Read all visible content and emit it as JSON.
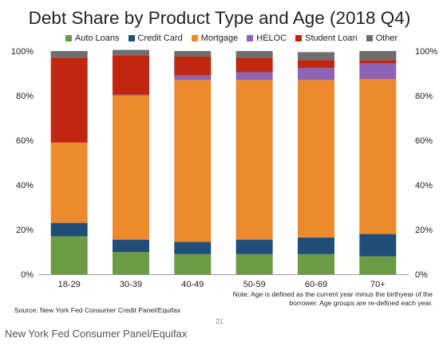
{
  "slide": {
    "source": "Source: New York Fed Consumer Credit Panel/Equifax",
    "note_line1": "Note: Age is defined as the current year minus the birthyear of the",
    "note_line2": "borrower. Age groups are re-defined each year.",
    "page_number": "21"
  },
  "caption": "New York Fed Consumer Panel/Equifax",
  "chart_data": {
    "type": "bar",
    "stacked": true,
    "title": "Debt Share by Product Type and Age (2018 Q4)",
    "categories": [
      "18-29",
      "30-39",
      "40-49",
      "50-59",
      "60-69",
      "70+"
    ],
    "ylim": [
      0,
      100
    ],
    "yticks": [
      "0%",
      "20%",
      "40%",
      "60%",
      "80%",
      "100%"
    ],
    "ytick_values": [
      0,
      20,
      40,
      60,
      80,
      100
    ],
    "secondary_axis": true,
    "grid": false,
    "legend_position": "top",
    "series": [
      {
        "name": "Auto Loans",
        "color": "#6d9a45",
        "values": [
          17,
          10,
          9,
          9,
          9,
          8
        ]
      },
      {
        "name": "Credit Card",
        "color": "#1f4e79",
        "values": [
          6,
          5.5,
          5.5,
          6.5,
          7.5,
          10
        ]
      },
      {
        "name": "Mortgage",
        "color": "#ed8a2e",
        "values": [
          36,
          64.5,
          72.5,
          71.5,
          70.5,
          69.5
        ]
      },
      {
        "name": "HELOC",
        "color": "#8e63b6",
        "values": [
          0,
          0.5,
          2,
          3.5,
          5.5,
          7
        ]
      },
      {
        "name": "Student Loan",
        "color": "#c1260e",
        "values": [
          38,
          17.5,
          8.5,
          6.5,
          3.5,
          1.5
        ]
      },
      {
        "name": "Other",
        "color": "#6e6e6e",
        "values": [
          3,
          2.5,
          2.5,
          3,
          3.5,
          4
        ]
      }
    ]
  }
}
